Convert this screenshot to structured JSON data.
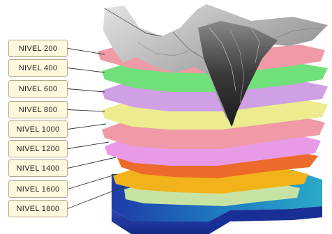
{
  "levels": [
    {
      "label": "NIVEL 200",
      "color": "#ef9aa6"
    },
    {
      "label": "NIVEL 400",
      "color": "#6fe07a"
    },
    {
      "label": "NIVEL 600",
      "color": "#cfa0e4"
    },
    {
      "label": "NIVEL 800",
      "color": "#ecec8e"
    },
    {
      "label": "NIVEL 1000",
      "color": "#ef9aa6"
    },
    {
      "label": "NIVEL 1200",
      "color": "#e99ae7"
    },
    {
      "label": "NIVEL 1400",
      "color": "#ec6a2a"
    },
    {
      "label": "NIVEL 1600",
      "color": "#f1b319"
    },
    {
      "label": "NIVEL 1800",
      "color": "#c7e3a4"
    }
  ],
  "base_block_colors": [
    "#1e3ba8",
    "#2ba9c9",
    "#47a99a"
  ],
  "terrain_colors": [
    "#2c2c2c",
    "#a9a9a9",
    "#e3e3e3"
  ]
}
